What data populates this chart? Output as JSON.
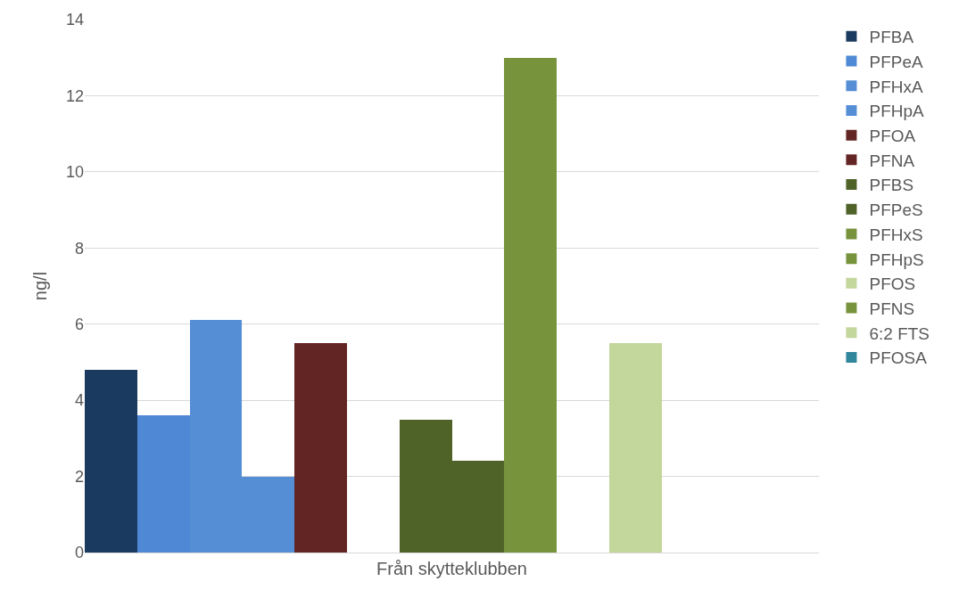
{
  "chart_data": {
    "type": "bar",
    "ylabel": "ng/l",
    "categories": [
      "Från skytteklubben"
    ],
    "ylim": [
      0,
      14
    ],
    "yticks": [
      0,
      2,
      4,
      6,
      8,
      10,
      12,
      14
    ],
    "grid": "y",
    "legend": "right",
    "series": [
      {
        "name": "PFBA",
        "color": "#1b3a5f",
        "values": [
          4.8
        ]
      },
      {
        "name": "PFPeA",
        "color": "#4f89d6",
        "values": [
          3.6
        ]
      },
      {
        "name": "PFHxA",
        "color": "#558ed5",
        "values": [
          6.1
        ]
      },
      {
        "name": "PFHpA",
        "color": "#558ed5",
        "values": [
          2.0
        ]
      },
      {
        "name": "PFOA",
        "color": "#632523",
        "values": [
          5.5
        ]
      },
      {
        "name": "PFNA",
        "color": "#632523",
        "values": [
          null
        ]
      },
      {
        "name": "PFBS",
        "color": "#4f6228",
        "values": [
          3.5
        ]
      },
      {
        "name": "PFPeS",
        "color": "#4f6228",
        "values": [
          2.4
        ]
      },
      {
        "name": "PFHxS",
        "color": "#77933c",
        "values": [
          13.0
        ]
      },
      {
        "name": "PFHpS",
        "color": "#77933c",
        "values": [
          null
        ]
      },
      {
        "name": "PFOS",
        "color": "#c3d69b",
        "values": [
          5.5
        ]
      },
      {
        "name": "PFNS",
        "color": "#77933c",
        "values": [
          null
        ]
      },
      {
        "name": "6:2 FTS",
        "color": "#c3d69b",
        "values": [
          null
        ]
      },
      {
        "name": "PFOSA",
        "color": "#31859c",
        "values": [
          null
        ]
      }
    ]
  }
}
